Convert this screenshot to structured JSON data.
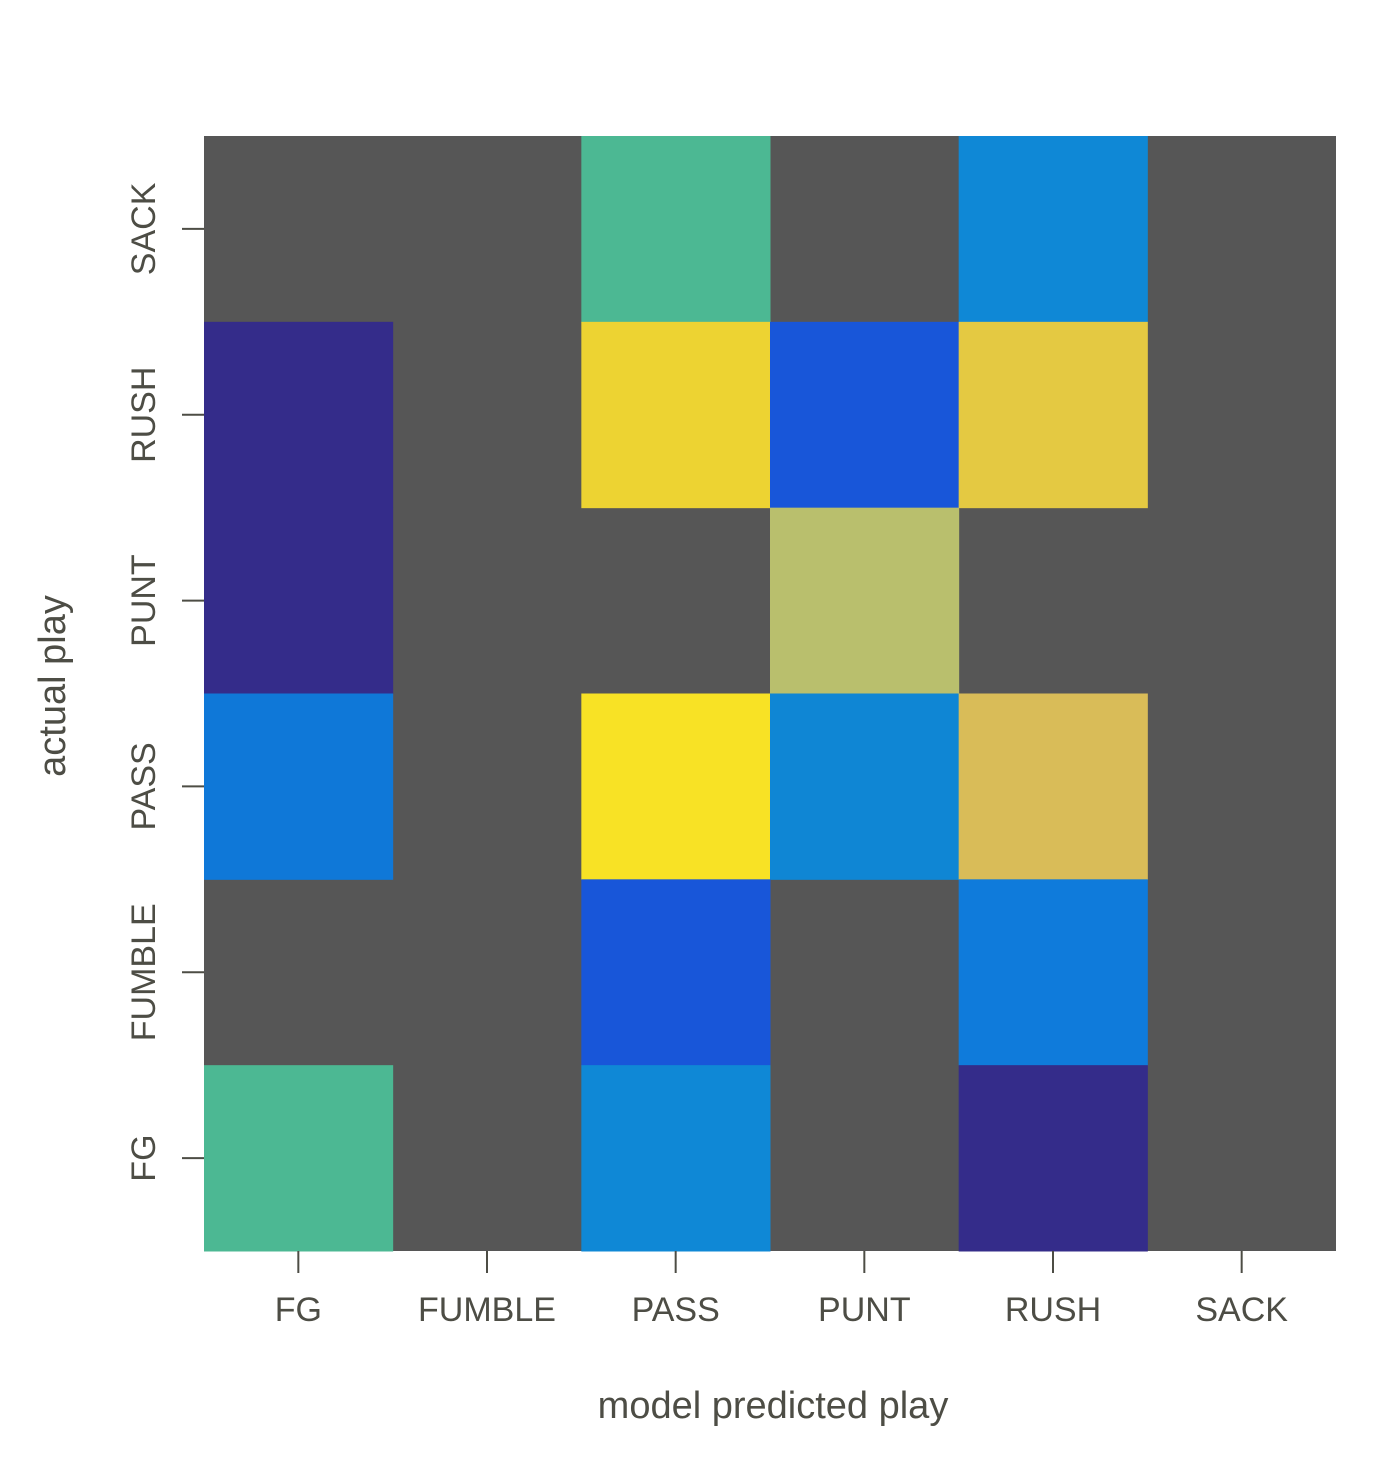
{
  "chart_data": {
    "type": "heatmap",
    "title": "",
    "xlabel": "model predicted play",
    "ylabel": "actual play",
    "x_categories": [
      "FG",
      "FUMBLE",
      "PASS",
      "PUNT",
      "RUSH",
      "SACK"
    ],
    "y_categories": [
      "FG",
      "FUMBLE",
      "PASS",
      "PUNT",
      "RUSH",
      "SACK"
    ],
    "background_color": "#565656",
    "cells": [
      {
        "actual": "SACK",
        "predicted": "PASS",
        "color": "#4cb893"
      },
      {
        "actual": "SACK",
        "predicted": "RUSH",
        "color": "#0f88d6"
      },
      {
        "actual": "RUSH",
        "predicted": "FG",
        "color": "#342c8a"
      },
      {
        "actual": "RUSH",
        "predicted": "PASS",
        "color": "#edd332"
      },
      {
        "actual": "RUSH",
        "predicted": "PUNT",
        "color": "#1856d9"
      },
      {
        "actual": "RUSH",
        "predicted": "RUSH",
        "color": "#e4c942"
      },
      {
        "actual": "PUNT",
        "predicted": "FG",
        "color": "#342c8a"
      },
      {
        "actual": "PUNT",
        "predicted": "PUNT",
        "color": "#b9bf6d"
      },
      {
        "actual": "PASS",
        "predicted": "FG",
        "color": "#0f78d8"
      },
      {
        "actual": "PASS",
        "predicted": "PASS",
        "color": "#f8e225"
      },
      {
        "actual": "PASS",
        "predicted": "PUNT",
        "color": "#0f86d4"
      },
      {
        "actual": "PASS",
        "predicted": "RUSH",
        "color": "#d9bc58"
      },
      {
        "actual": "FUMBLE",
        "predicted": "PASS",
        "color": "#1856d9"
      },
      {
        "actual": "FUMBLE",
        "predicted": "RUSH",
        "color": "#0f7bdb"
      },
      {
        "actual": "FG",
        "predicted": "FG",
        "color": "#4cb893"
      },
      {
        "actual": "FG",
        "predicted": "PASS",
        "color": "#0f88d6"
      },
      {
        "actual": "FG",
        "predicted": "RUSH",
        "color": "#342c8a"
      }
    ]
  }
}
